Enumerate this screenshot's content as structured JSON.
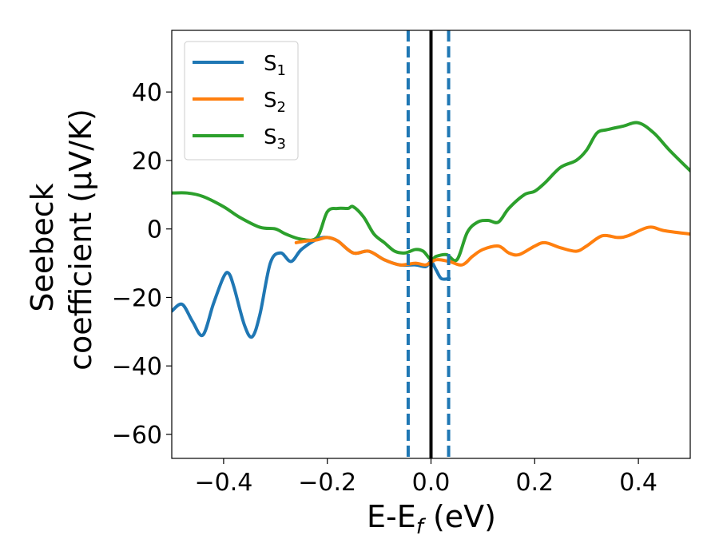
{
  "chart_data": {
    "type": "line",
    "title": "",
    "xlabel": "E-Ef (eV)",
    "xlabel_main": "E-E",
    "xlabel_sub": "f",
    "xlabel_unit": " (eV)",
    "ylabel_line1": "Seebeck",
    "ylabel_line2": "coefficient  (μV/K)",
    "xlim": [
      -0.5,
      0.5
    ],
    "ylim": [
      -67,
      58
    ],
    "xticks": [
      -0.4,
      -0.2,
      0.0,
      0.2,
      0.4
    ],
    "xtick_labels": [
      "−0.4",
      "−0.2",
      "0.0",
      "0.2",
      "0.4"
    ],
    "yticks": [
      -60,
      -40,
      -20,
      0,
      20,
      40
    ],
    "ytick_labels": [
      "−60",
      "−40",
      "−20",
      "0",
      "20",
      "40"
    ],
    "grid": false,
    "legend_position": "top-left",
    "series": [
      {
        "name": "S1",
        "legend_main": "S",
        "legend_sub": "1",
        "color": "#1f77b4",
        "x": [
          -0.5,
          -0.48,
          -0.46,
          -0.44,
          -0.42,
          -0.4,
          -0.39,
          -0.38,
          -0.36,
          -0.345,
          -0.33,
          -0.31,
          -0.29,
          -0.27,
          -0.25,
          -0.22,
          -0.2,
          -0.18,
          -0.15,
          -0.12,
          -0.09,
          -0.06,
          -0.03,
          -0.01,
          0.0,
          0.01,
          0.02,
          0.035
        ],
        "y": [
          -24,
          -22,
          -27,
          -31,
          -22,
          -14,
          -13,
          -17,
          -28,
          -31.5,
          -25,
          -10,
          -7,
          -9.5,
          -6,
          -3,
          -2.5,
          -3.5,
          -7,
          -6.5,
          -9,
          -10.5,
          -10.5,
          -11,
          -9.5,
          -12,
          -14.5,
          -14.5
        ]
      },
      {
        "name": "S2",
        "legend_main": "S",
        "legend_sub": "2",
        "color": "#ff7f0e",
        "x": [
          -0.26,
          -0.24,
          -0.22,
          -0.2,
          -0.18,
          -0.15,
          -0.12,
          -0.09,
          -0.06,
          -0.03,
          -0.01,
          0.01,
          0.035,
          0.06,
          0.08,
          0.1,
          0.13,
          0.15,
          0.17,
          0.2,
          0.22,
          0.25,
          0.28,
          0.3,
          0.33,
          0.36,
          0.38,
          0.42,
          0.45,
          0.5
        ],
        "y": [
          -4,
          -3.5,
          -3.2,
          -2.5,
          -3.5,
          -7,
          -6.5,
          -9,
          -10.5,
          -10,
          -10.5,
          -9,
          -9.5,
          -10.5,
          -8,
          -6,
          -5,
          -7,
          -7.5,
          -5,
          -4,
          -5.5,
          -6.5,
          -5,
          -2,
          -2.5,
          -2,
          0.5,
          -0.5,
          -1.5
        ]
      },
      {
        "name": "S3",
        "legend_main": "S",
        "legend_sub": "3",
        "color": "#2ca02c",
        "x": [
          -0.5,
          -0.47,
          -0.44,
          -0.4,
          -0.37,
          -0.33,
          -0.3,
          -0.28,
          -0.25,
          -0.22,
          -0.2,
          -0.18,
          -0.16,
          -0.15,
          -0.13,
          -0.11,
          -0.09,
          -0.07,
          -0.05,
          -0.03,
          -0.015,
          0.0,
          0.01,
          0.03,
          0.05,
          0.07,
          0.09,
          0.11,
          0.13,
          0.15,
          0.18,
          0.2,
          0.22,
          0.25,
          0.28,
          0.3,
          0.32,
          0.34,
          0.37,
          0.4,
          0.43,
          0.46,
          0.5
        ],
        "y": [
          10.5,
          10.5,
          9.5,
          6.5,
          3.5,
          0.5,
          0,
          -1.5,
          -3,
          -2.5,
          5,
          6,
          6,
          6.5,
          3.5,
          -1.5,
          -4,
          -6.5,
          -7,
          -6,
          -6.5,
          -9,
          -8,
          -7.5,
          -9,
          -1,
          2,
          2.5,
          2,
          6,
          10,
          11,
          13.5,
          18,
          20,
          23,
          28,
          29,
          30,
          31,
          28,
          23,
          17
        ]
      }
    ],
    "vlines": [
      {
        "x": -0.044,
        "color": "#1f77b4",
        "style": "dashed"
      },
      {
        "x": 0.0,
        "color": "#000000",
        "style": "solid"
      },
      {
        "x": 0.034,
        "color": "#1f77b4",
        "style": "dashed"
      }
    ]
  }
}
